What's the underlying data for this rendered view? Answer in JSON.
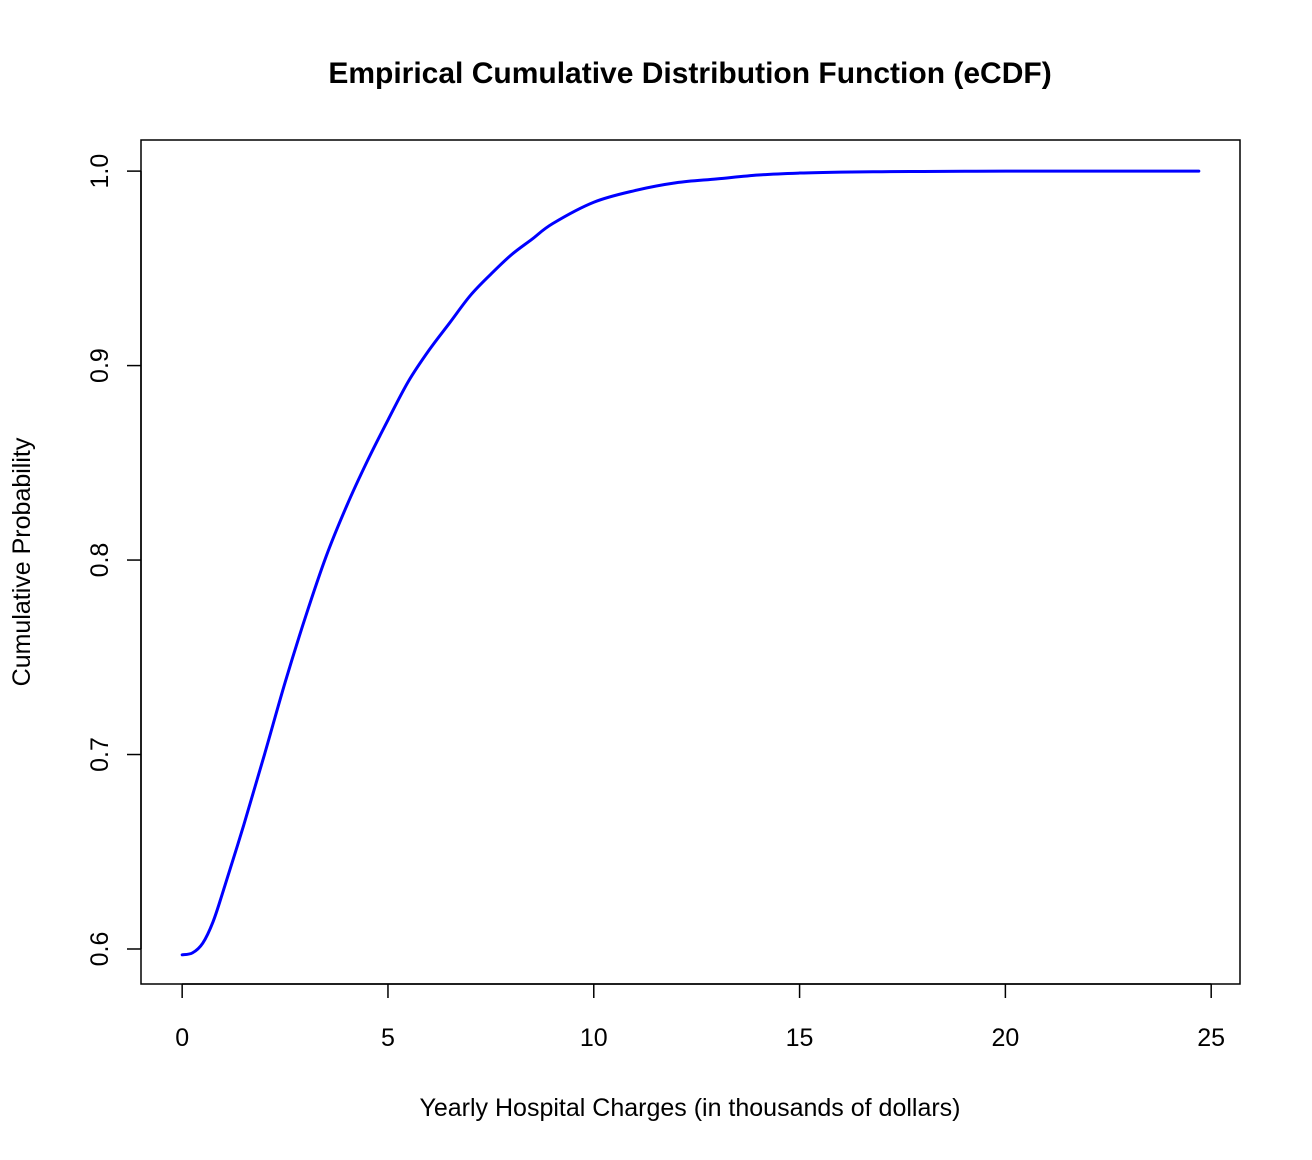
{
  "chart_data": {
    "type": "line",
    "title": "Empirical Cumulative Distribution Function (eCDF)",
    "xlabel": "Yearly Hospital Charges (in thousands of dollars)",
    "ylabel": "Cumulative Probability",
    "xlim": [
      -1,
      25.7
    ],
    "ylim": [
      0.582,
      1.016
    ],
    "x_ticks": [
      0,
      5,
      10,
      15,
      20,
      25
    ],
    "x_tick_labels": [
      "0",
      "5",
      "10",
      "15",
      "20",
      "25"
    ],
    "y_ticks": [
      0.6,
      0.7,
      0.8,
      0.9,
      1.0
    ],
    "y_tick_labels": [
      "0.6",
      "0.7",
      "0.8",
      "0.9",
      "1.0"
    ],
    "grid": false,
    "legend": "none",
    "series": [
      {
        "color": "#0000ff",
        "x": [
          0,
          0.25,
          0.5,
          0.75,
          1,
          1.5,
          2,
          2.5,
          3,
          3.5,
          4,
          4.5,
          5,
          5.5,
          6,
          6.5,
          7,
          7.5,
          8,
          8.5,
          9,
          10,
          11,
          12,
          13,
          14,
          15,
          16,
          17,
          18,
          19,
          20,
          22,
          24.7
        ],
        "y": [
          0.597,
          0.598,
          0.603,
          0.614,
          0.63,
          0.664,
          0.7,
          0.737,
          0.771,
          0.802,
          0.828,
          0.851,
          0.872,
          0.892,
          0.908,
          0.922,
          0.936,
          0.947,
          0.957,
          0.965,
          0.973,
          0.984,
          0.99,
          0.994,
          0.996,
          0.998,
          0.999,
          0.9995,
          0.9997,
          0.9998,
          0.9999,
          1.0,
          1.0,
          1.0
        ]
      }
    ]
  },
  "colors": {
    "line": "#0000ff",
    "axis": "#000000",
    "background": "#ffffff"
  }
}
